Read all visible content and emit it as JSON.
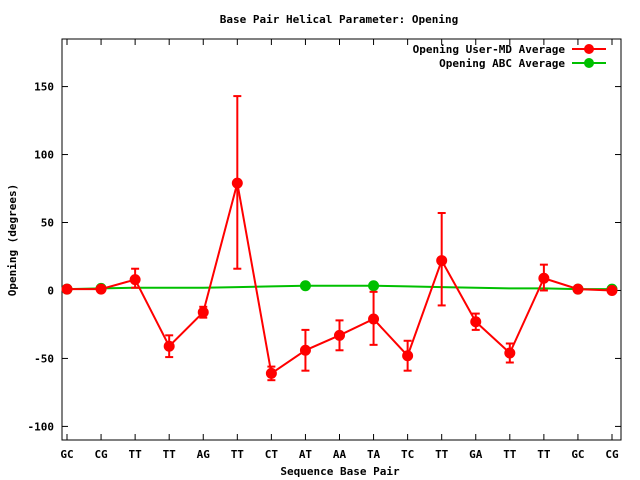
{
  "chart_data": {
    "type": "line",
    "title": "Base Pair Helical Parameter: Opening",
    "xlabel": "Sequence Base Pair",
    "ylabel": "Opening (degrees)",
    "ylim": [
      -110,
      185
    ],
    "yticks": [
      -100,
      -50,
      0,
      50,
      100,
      150
    ],
    "categories": [
      "GC",
      "CG",
      "TT",
      "TT",
      "AG",
      "TT",
      "CT",
      "AT",
      "AA",
      "TA",
      "TC",
      "TT",
      "GA",
      "TT",
      "TT",
      "GC",
      "CG"
    ],
    "legend_position": "top-right",
    "grid": false,
    "series": [
      {
        "name": "Opening User-MD Average",
        "color": "#ff0000",
        "values": [
          1,
          1,
          8,
          -41,
          -16,
          79,
          -61,
          -44,
          -33,
          -21,
          -48,
          22,
          -23,
          -46,
          9,
          1,
          0
        ],
        "err_low": [
          0,
          0,
          6,
          8,
          4,
          63,
          5,
          15,
          11,
          19,
          11,
          33,
          6,
          7,
          9,
          0,
          0
        ],
        "err_high": [
          0,
          0,
          8,
          8,
          4,
          64,
          5,
          15,
          11,
          20,
          11,
          35,
          6,
          7,
          10,
          0,
          0
        ],
        "show_markers_for_points": "all"
      },
      {
        "name": "Opening ABC Average",
        "color": "#00c000",
        "values": [
          1,
          1.5,
          2,
          2,
          2,
          2.5,
          3,
          3.5,
          3.5,
          3.5,
          3,
          2.5,
          2,
          1.5,
          1.5,
          1,
          1
        ],
        "marker_indices": [
          0,
          1,
          7,
          9,
          15,
          16
        ]
      }
    ]
  }
}
